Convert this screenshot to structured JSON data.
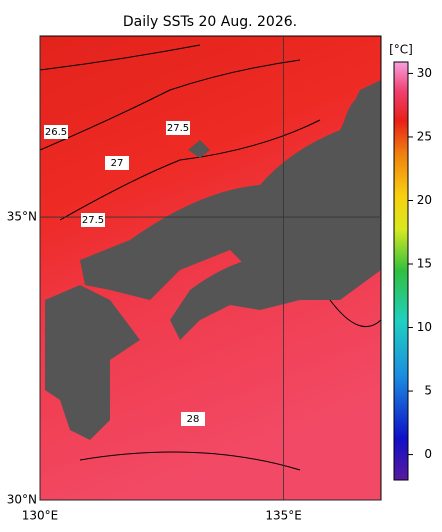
{
  "title": "Daily SSTs 20 Aug. 2026.",
  "map": {
    "lonlim": [
      130,
      137
    ],
    "latlim": [
      30,
      38.2
    ],
    "lonticks": [
      {
        "value": 130,
        "label": "130°E"
      },
      {
        "value": 135,
        "label": "135°E"
      }
    ],
    "latticks": [
      {
        "value": 30,
        "label": "30°N"
      },
      {
        "value": 35,
        "label": "35°N"
      }
    ],
    "contour_labels": [
      26.5,
      27,
      27.5,
      27.5,
      28
    ]
  },
  "colorbar": {
    "unit": "[°C]",
    "lim": [
      -2,
      30.9
    ],
    "ticks": [
      0,
      5,
      10,
      15,
      20,
      25,
      30
    ]
  }
}
